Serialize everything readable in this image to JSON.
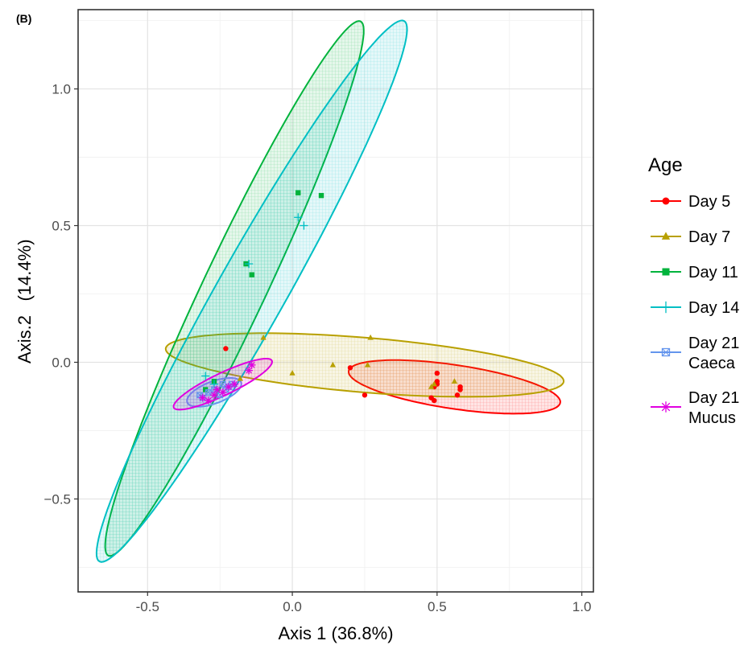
{
  "panel_label": "(B)",
  "chart_data": {
    "type": "scatter",
    "title": "",
    "xlabel": "Axis 1 (36.8%)",
    "ylabel_axis": "Axis.2",
    "ylabel_pct": "(14.4%)",
    "xlim": [
      -0.74,
      1.04
    ],
    "ylim": [
      -0.84,
      1.29
    ],
    "x_ticks": [
      -0.5,
      0.0,
      0.5,
      1.0
    ],
    "x_tick_labels": [
      "-0.5",
      "0.0",
      "0.5",
      "1.0"
    ],
    "y_ticks": [
      -0.5,
      0.0,
      0.5,
      1.0
    ],
    "y_tick_labels": [
      "−0.5",
      "0.0",
      "0.5",
      "1.0"
    ],
    "grid": true,
    "legend_title": "Age",
    "legend_position": "right",
    "series": [
      {
        "name": "Day 5",
        "label_lines": [
          "Day 5"
        ],
        "color": "#ff0000",
        "marker": "circle",
        "points": [
          [
            -0.23,
            0.05
          ],
          [
            0.2,
            -0.02
          ],
          [
            0.25,
            -0.12
          ],
          [
            0.48,
            -0.13
          ],
          [
            0.49,
            -0.14
          ],
          [
            0.49,
            -0.09
          ],
          [
            0.5,
            -0.08
          ],
          [
            0.5,
            -0.07
          ],
          [
            0.5,
            -0.04
          ],
          [
            0.57,
            -0.12
          ],
          [
            0.58,
            -0.09
          ],
          [
            0.58,
            -0.1
          ]
        ],
        "ellipse": {
          "cx": 0.56,
          "cy": -0.09,
          "rx": 0.37,
          "ry": 0.08,
          "angle": -9
        }
      },
      {
        "name": "Day 7",
        "label_lines": [
          "Day 7"
        ],
        "color": "#b8a000",
        "marker": "triangle",
        "points": [
          [
            -0.18,
            -0.06
          ],
          [
            -0.1,
            0.09
          ],
          [
            0.0,
            -0.04
          ],
          [
            0.14,
            -0.01
          ],
          [
            0.26,
            -0.01
          ],
          [
            0.27,
            0.09
          ],
          [
            0.48,
            -0.09
          ],
          [
            0.49,
            -0.08
          ],
          [
            0.56,
            -0.07
          ]
        ],
        "ellipse": {
          "cx": 0.25,
          "cy": -0.01,
          "rx": 0.69,
          "ry": 0.1,
          "angle": -5
        }
      },
      {
        "name": "Day 11",
        "label_lines": [
          "Day 11"
        ],
        "color": "#00b33c",
        "marker": "square",
        "points": [
          [
            -0.3,
            -0.1
          ],
          [
            -0.27,
            -0.07
          ],
          [
            -0.16,
            0.36
          ],
          [
            -0.14,
            0.32
          ],
          [
            0.02,
            0.62
          ],
          [
            0.1,
            0.61
          ]
        ],
        "ellipse": {
          "cx": -0.2,
          "cy": 0.27,
          "rx": 1.07,
          "ry": 0.11,
          "angle": 66
        }
      },
      {
        "name": "Day 14",
        "label_lines": [
          "Day 14"
        ],
        "color": "#00bfc4",
        "marker": "plus",
        "points": [
          [
            -0.3,
            -0.05
          ],
          [
            -0.27,
            -0.08
          ],
          [
            -0.15,
            0.36
          ],
          [
            0.02,
            0.53
          ],
          [
            0.04,
            0.5
          ]
        ],
        "ellipse": {
          "cx": -0.14,
          "cy": 0.26,
          "rx": 1.12,
          "ry": 0.12,
          "angle": 62
        }
      },
      {
        "name": "Day 21 Caeca",
        "label_lines": [
          "Day 21",
          "Caeca"
        ],
        "color": "#6495ed",
        "marker": "square-cross",
        "points": [
          [
            -0.32,
            -0.12
          ],
          [
            -0.31,
            -0.13
          ],
          [
            -0.29,
            -0.11
          ],
          [
            -0.27,
            -0.1
          ],
          [
            -0.25,
            -0.12
          ],
          [
            -0.24,
            -0.08
          ],
          [
            -0.23,
            -0.1
          ],
          [
            -0.22,
            -0.09
          ],
          [
            -0.21,
            -0.08
          ]
        ],
        "ellipse": {
          "cx": -0.27,
          "cy": -0.11,
          "rx": 0.1,
          "ry": 0.04,
          "angle": 22
        }
      },
      {
        "name": "Day 21 Mucus",
        "label_lines": [
          "Day 21",
          "Mucus"
        ],
        "color": "#e000e0",
        "marker": "asterisk",
        "points": [
          [
            -0.31,
            -0.13
          ],
          [
            -0.29,
            -0.14
          ],
          [
            -0.27,
            -0.12
          ],
          [
            -0.26,
            -0.1
          ],
          [
            -0.24,
            -0.11
          ],
          [
            -0.22,
            -0.09
          ],
          [
            -0.2,
            -0.08
          ],
          [
            -0.15,
            -0.03
          ],
          [
            -0.14,
            -0.01
          ]
        ],
        "ellipse": {
          "cx": -0.24,
          "cy": -0.08,
          "rx": 0.19,
          "ry": 0.04,
          "angle": 27
        }
      }
    ]
  }
}
